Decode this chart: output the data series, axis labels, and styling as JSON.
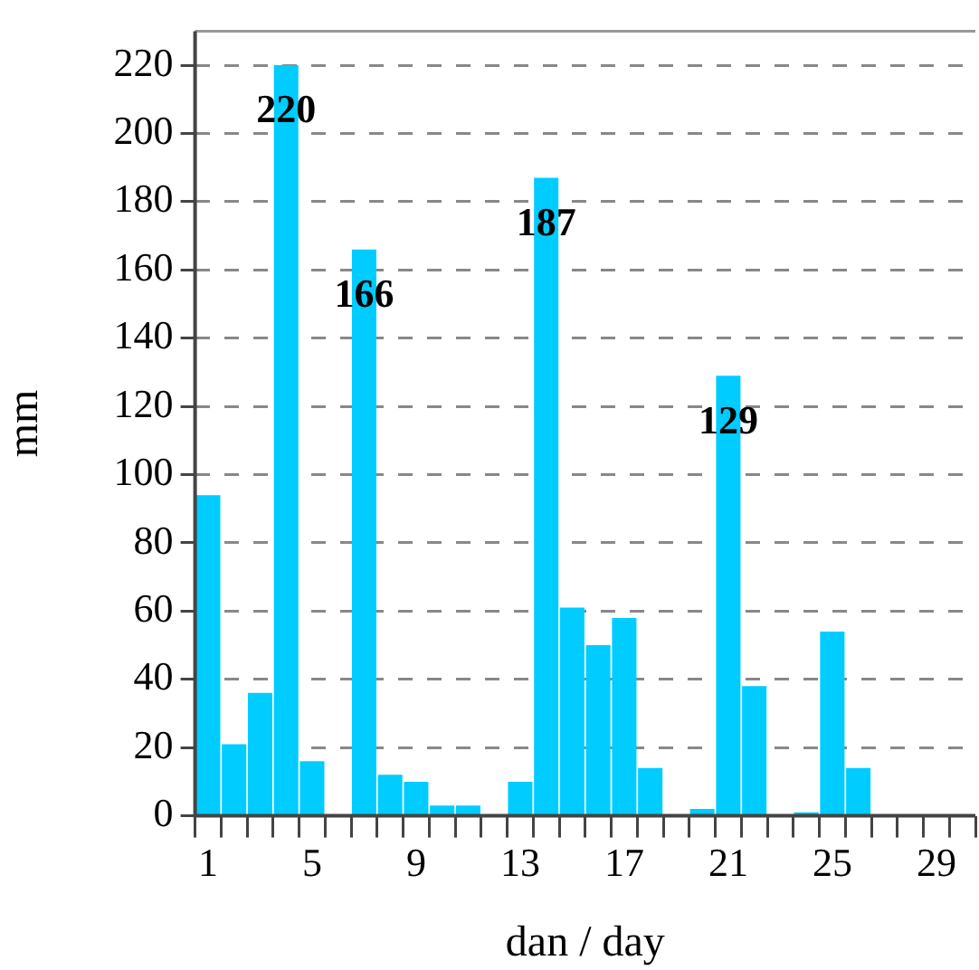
{
  "chart_data": {
    "type": "bar",
    "xlabel": "dan / day",
    "ylabel": "mm",
    "categories": [
      "1",
      null,
      null,
      null,
      "5",
      null,
      null,
      null,
      "9",
      null,
      null,
      null,
      "13",
      null,
      null,
      null,
      "17",
      null,
      null,
      null,
      "21",
      null,
      null,
      null,
      "25",
      null,
      null,
      null,
      "29",
      null
    ],
    "values": [
      94,
      21,
      36,
      220,
      16,
      0,
      166,
      12,
      10,
      3,
      3,
      0,
      10,
      187,
      61,
      50,
      58,
      14,
      0,
      2,
      129,
      38,
      0,
      1,
      54,
      14,
      0,
      0,
      0,
      0
    ],
    "value_labels": [
      null,
      null,
      null,
      "220",
      null,
      null,
      "166",
      null,
      null,
      null,
      null,
      null,
      null,
      "187",
      null,
      null,
      null,
      null,
      null,
      null,
      "129",
      null,
      null,
      null,
      null,
      null,
      null,
      null,
      null,
      null
    ],
    "color": "#00ccff",
    "ylim": [
      0,
      230
    ],
    "yticks": [
      0,
      20,
      40,
      60,
      80,
      100,
      120,
      140,
      160,
      180,
      200,
      220
    ],
    "grid": "y",
    "legend": false
  }
}
